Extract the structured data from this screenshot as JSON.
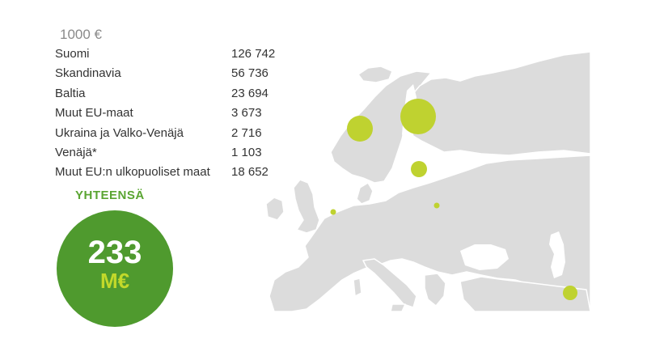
{
  "unit_label": "1000 €",
  "rows": [
    {
      "name": "Suomi",
      "value": "126 742"
    },
    {
      "name": "Skandinavia",
      "value": "56 736"
    },
    {
      "name": "Baltia",
      "value": "23 694"
    },
    {
      "name": "Muut EU-maat",
      "value": "3 673"
    },
    {
      "name": "Ukraina ja Valko-Venäjä",
      "value": "2 716"
    },
    {
      "name": "Venäjä*",
      "value": "1 103"
    },
    {
      "name": "Muut EU:n ulkopuoliset maat",
      "value": "18 652"
    }
  ],
  "total": {
    "label": "YHTEENSÄ",
    "amount": "233",
    "unit": "M€"
  },
  "colors": {
    "land": "#dcdcdc",
    "bubble": "#bfd230",
    "total_circle": "#4f9a2e",
    "total_label": "#5aa532",
    "total_unit": "#c2d92a"
  }
}
